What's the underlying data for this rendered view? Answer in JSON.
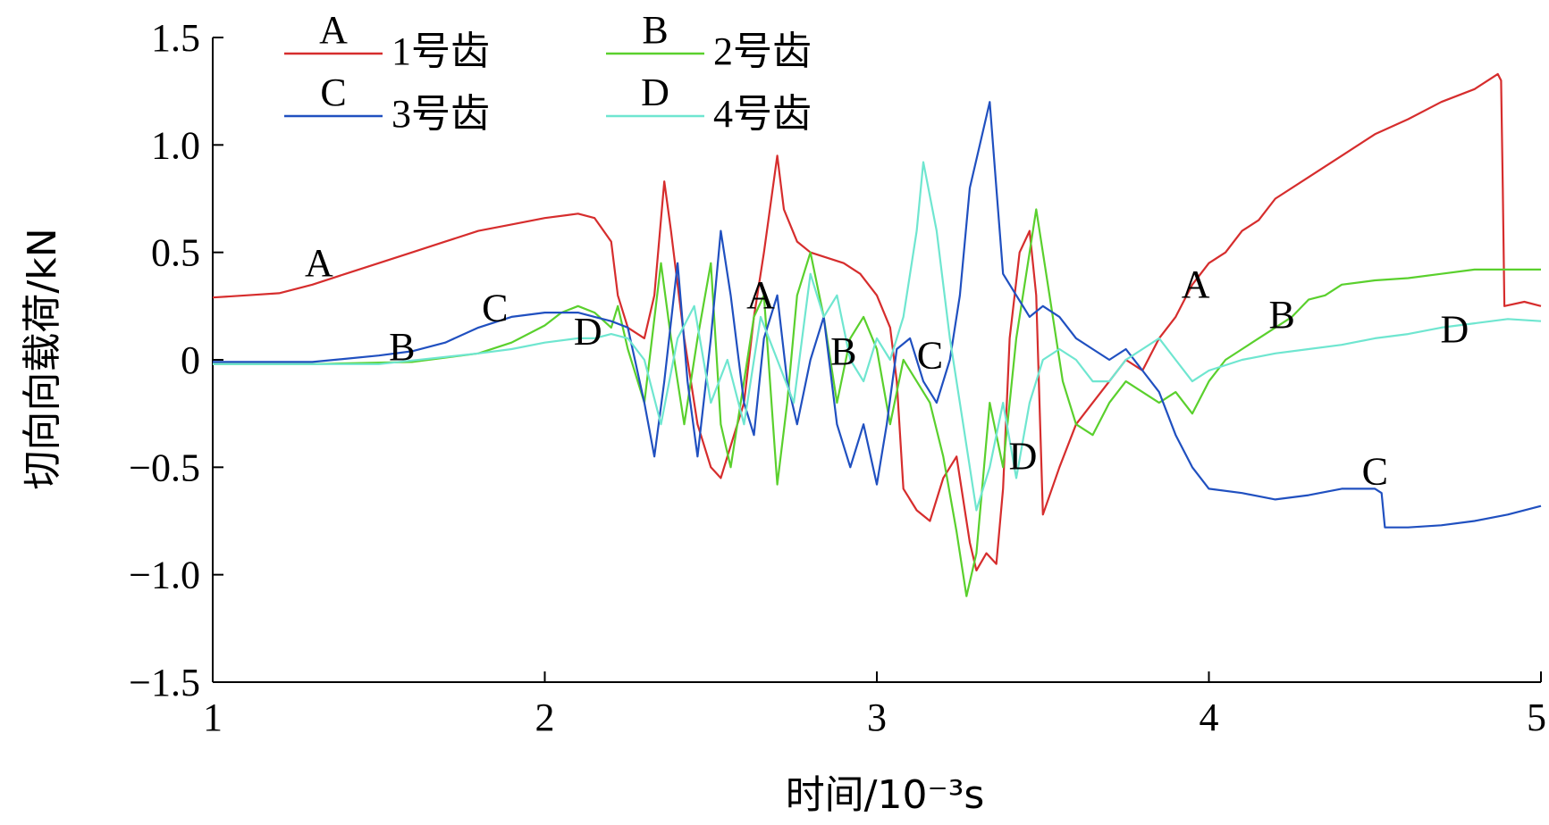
{
  "chart_data": {
    "type": "line",
    "xlabel": "时间/10⁻³s",
    "ylabel": "切向向载荷/kN",
    "xlim": [
      1,
      5
    ],
    "ylim": [
      -1.5,
      1.5
    ],
    "xticks": [
      1,
      2,
      3,
      4,
      5
    ],
    "xtick_labels": [
      "1",
      "2",
      "3",
      "4",
      "5"
    ],
    "yticks": [
      -1.5,
      -1.0,
      -0.5,
      0,
      0.5,
      1.0,
      1.5
    ],
    "ytick_labels": [
      "−1.5",
      "−1.0",
      "−0.5",
      "0",
      "0.5",
      "1.0",
      "1.5"
    ],
    "grid": false,
    "legend_position": "top-left",
    "series": [
      {
        "key": "A",
        "name": "1号齿",
        "color": "#d62d2d",
        "points": [
          [
            1.0,
            0.29
          ],
          [
            1.1,
            0.3
          ],
          [
            1.2,
            0.31
          ],
          [
            1.3,
            0.35
          ],
          [
            1.4,
            0.4
          ],
          [
            1.5,
            0.45
          ],
          [
            1.6,
            0.5
          ],
          [
            1.7,
            0.55
          ],
          [
            1.8,
            0.6
          ],
          [
            1.9,
            0.63
          ],
          [
            2.0,
            0.66
          ],
          [
            2.1,
            0.68
          ],
          [
            2.15,
            0.66
          ],
          [
            2.2,
            0.55
          ],
          [
            2.22,
            0.3
          ],
          [
            2.25,
            0.15
          ],
          [
            2.3,
            0.1
          ],
          [
            2.33,
            0.3
          ],
          [
            2.36,
            0.83
          ],
          [
            2.38,
            0.6
          ],
          [
            2.42,
            0.1
          ],
          [
            2.46,
            -0.3
          ],
          [
            2.5,
            -0.5
          ],
          [
            2.53,
            -0.55
          ],
          [
            2.56,
            -0.4
          ],
          [
            2.6,
            -0.2
          ],
          [
            2.63,
            0.2
          ],
          [
            2.66,
            0.5
          ],
          [
            2.7,
            0.95
          ],
          [
            2.72,
            0.7
          ],
          [
            2.76,
            0.55
          ],
          [
            2.8,
            0.5
          ],
          [
            2.9,
            0.45
          ],
          [
            2.95,
            0.4
          ],
          [
            3.0,
            0.3
          ],
          [
            3.04,
            0.15
          ],
          [
            3.06,
            -0.1
          ],
          [
            3.08,
            -0.6
          ],
          [
            3.12,
            -0.7
          ],
          [
            3.16,
            -0.75
          ],
          [
            3.2,
            -0.55
          ],
          [
            3.24,
            -0.45
          ],
          [
            3.28,
            -0.85
          ],
          [
            3.3,
            -0.98
          ],
          [
            3.33,
            -0.9
          ],
          [
            3.36,
            -0.95
          ],
          [
            3.38,
            -0.6
          ],
          [
            3.4,
            0.1
          ],
          [
            3.43,
            0.5
          ],
          [
            3.46,
            0.6
          ],
          [
            3.48,
            0.3
          ],
          [
            3.5,
            -0.72
          ],
          [
            3.55,
            -0.5
          ],
          [
            3.6,
            -0.3
          ],
          [
            3.65,
            -0.2
          ],
          [
            3.7,
            -0.1
          ],
          [
            3.75,
            0.0
          ],
          [
            3.8,
            -0.05
          ],
          [
            3.85,
            0.1
          ],
          [
            3.9,
            0.2
          ],
          [
            3.95,
            0.35
          ],
          [
            4.0,
            0.45
          ],
          [
            4.05,
            0.5
          ],
          [
            4.1,
            0.6
          ],
          [
            4.15,
            0.65
          ],
          [
            4.2,
            0.75
          ],
          [
            4.3,
            0.85
          ],
          [
            4.4,
            0.95
          ],
          [
            4.5,
            1.05
          ],
          [
            4.6,
            1.12
          ],
          [
            4.7,
            1.2
          ],
          [
            4.8,
            1.26
          ],
          [
            4.87,
            1.33
          ],
          [
            4.88,
            1.3
          ],
          [
            4.885,
            0.8
          ],
          [
            4.89,
            0.25
          ],
          [
            4.95,
            0.27
          ],
          [
            5.0,
            0.25
          ]
        ]
      },
      {
        "key": "B",
        "name": "2号齿",
        "color": "#5ad02d",
        "points": [
          [
            1.0,
            -0.02
          ],
          [
            1.3,
            -0.02
          ],
          [
            1.6,
            -0.01
          ],
          [
            1.8,
            0.03
          ],
          [
            1.9,
            0.08
          ],
          [
            2.0,
            0.16
          ],
          [
            2.05,
            0.22
          ],
          [
            2.1,
            0.25
          ],
          [
            2.15,
            0.22
          ],
          [
            2.2,
            0.15
          ],
          [
            2.22,
            0.25
          ],
          [
            2.25,
            0.05
          ],
          [
            2.3,
            -0.2
          ],
          [
            2.35,
            0.45
          ],
          [
            2.38,
            0.1
          ],
          [
            2.42,
            -0.3
          ],
          [
            2.46,
            0.1
          ],
          [
            2.5,
            0.45
          ],
          [
            2.53,
            -0.3
          ],
          [
            2.56,
            -0.5
          ],
          [
            2.6,
            -0.1
          ],
          [
            2.63,
            0.2
          ],
          [
            2.66,
            0.3
          ],
          [
            2.7,
            -0.58
          ],
          [
            2.73,
            -0.2
          ],
          [
            2.76,
            0.3
          ],
          [
            2.8,
            0.5
          ],
          [
            2.84,
            0.2
          ],
          [
            2.88,
            -0.2
          ],
          [
            2.92,
            0.1
          ],
          [
            2.96,
            0.2
          ],
          [
            3.0,
            0.05
          ],
          [
            3.04,
            -0.3
          ],
          [
            3.08,
            0.0
          ],
          [
            3.12,
            -0.1
          ],
          [
            3.16,
            -0.2
          ],
          [
            3.2,
            -0.45
          ],
          [
            3.24,
            -0.8
          ],
          [
            3.27,
            -1.1
          ],
          [
            3.3,
            -0.9
          ],
          [
            3.34,
            -0.2
          ],
          [
            3.38,
            -0.5
          ],
          [
            3.42,
            0.1
          ],
          [
            3.46,
            0.5
          ],
          [
            3.48,
            0.7
          ],
          [
            3.52,
            0.3
          ],
          [
            3.56,
            -0.1
          ],
          [
            3.6,
            -0.3
          ],
          [
            3.65,
            -0.35
          ],
          [
            3.7,
            -0.2
          ],
          [
            3.75,
            -0.1
          ],
          [
            3.8,
            -0.15
          ],
          [
            3.85,
            -0.2
          ],
          [
            3.9,
            -0.15
          ],
          [
            3.95,
            -0.25
          ],
          [
            4.0,
            -0.1
          ],
          [
            4.05,
            0.0
          ],
          [
            4.1,
            0.05
          ],
          [
            4.15,
            0.1
          ],
          [
            4.2,
            0.15
          ],
          [
            4.25,
            0.2
          ],
          [
            4.3,
            0.28
          ],
          [
            4.35,
            0.3
          ],
          [
            4.4,
            0.35
          ],
          [
            4.5,
            0.37
          ],
          [
            4.6,
            0.38
          ],
          [
            4.7,
            0.4
          ],
          [
            4.8,
            0.42
          ],
          [
            4.9,
            0.42
          ],
          [
            5.0,
            0.42
          ]
        ]
      },
      {
        "key": "C",
        "name": "3号齿",
        "color": "#2050c0",
        "points": [
          [
            1.0,
            -0.01
          ],
          [
            1.3,
            -0.01
          ],
          [
            1.5,
            0.02
          ],
          [
            1.6,
            0.04
          ],
          [
            1.7,
            0.08
          ],
          [
            1.8,
            0.15
          ],
          [
            1.9,
            0.2
          ],
          [
            2.0,
            0.22
          ],
          [
            2.1,
            0.22
          ],
          [
            2.15,
            0.2
          ],
          [
            2.2,
            0.18
          ],
          [
            2.25,
            0.15
          ],
          [
            2.3,
            -0.2
          ],
          [
            2.33,
            -0.45
          ],
          [
            2.36,
            -0.1
          ],
          [
            2.4,
            0.45
          ],
          [
            2.43,
            -0.1
          ],
          [
            2.46,
            -0.45
          ],
          [
            2.5,
            0.1
          ],
          [
            2.53,
            0.6
          ],
          [
            2.56,
            0.3
          ],
          [
            2.6,
            -0.2
          ],
          [
            2.63,
            -0.35
          ],
          [
            2.66,
            0.1
          ],
          [
            2.7,
            0.3
          ],
          [
            2.73,
            -0.1
          ],
          [
            2.76,
            -0.3
          ],
          [
            2.8,
            0.0
          ],
          [
            2.84,
            0.2
          ],
          [
            2.88,
            -0.3
          ],
          [
            2.92,
            -0.5
          ],
          [
            2.96,
            -0.3
          ],
          [
            3.0,
            -0.58
          ],
          [
            3.03,
            -0.3
          ],
          [
            3.06,
            0.05
          ],
          [
            3.1,
            0.1
          ],
          [
            3.14,
            -0.1
          ],
          [
            3.18,
            -0.2
          ],
          [
            3.22,
            0.0
          ],
          [
            3.25,
            0.3
          ],
          [
            3.28,
            0.8
          ],
          [
            3.31,
            1.0
          ],
          [
            3.34,
            1.2
          ],
          [
            3.36,
            0.8
          ],
          [
            3.38,
            0.4
          ],
          [
            3.42,
            0.3
          ],
          [
            3.46,
            0.2
          ],
          [
            3.5,
            0.25
          ],
          [
            3.55,
            0.2
          ],
          [
            3.6,
            0.1
          ],
          [
            3.65,
            0.05
          ],
          [
            3.7,
            0.0
          ],
          [
            3.75,
            0.05
          ],
          [
            3.8,
            -0.05
          ],
          [
            3.85,
            -0.15
          ],
          [
            3.9,
            -0.35
          ],
          [
            3.95,
            -0.5
          ],
          [
            4.0,
            -0.6
          ],
          [
            4.1,
            -0.62
          ],
          [
            4.2,
            -0.65
          ],
          [
            4.3,
            -0.63
          ],
          [
            4.4,
            -0.6
          ],
          [
            4.5,
            -0.6
          ],
          [
            4.52,
            -0.62
          ],
          [
            4.53,
            -0.78
          ],
          [
            4.6,
            -0.78
          ],
          [
            4.7,
            -0.77
          ],
          [
            4.8,
            -0.75
          ],
          [
            4.9,
            -0.72
          ],
          [
            5.0,
            -0.68
          ]
        ]
      },
      {
        "key": "D",
        "name": "4号齿",
        "color": "#6fe6d0",
        "points": [
          [
            1.0,
            -0.02
          ],
          [
            1.5,
            -0.02
          ],
          [
            1.8,
            0.03
          ],
          [
            1.9,
            0.05
          ],
          [
            2.0,
            0.08
          ],
          [
            2.1,
            0.1
          ],
          [
            2.15,
            0.1
          ],
          [
            2.2,
            0.12
          ],
          [
            2.25,
            0.1
          ],
          [
            2.3,
            0.0
          ],
          [
            2.35,
            -0.3
          ],
          [
            2.4,
            0.1
          ],
          [
            2.45,
            0.25
          ],
          [
            2.5,
            -0.2
          ],
          [
            2.55,
            0.0
          ],
          [
            2.6,
            -0.3
          ],
          [
            2.65,
            0.2
          ],
          [
            2.7,
            0.0
          ],
          [
            2.75,
            -0.2
          ],
          [
            2.8,
            0.4
          ],
          [
            2.84,
            0.2
          ],
          [
            2.88,
            0.3
          ],
          [
            2.92,
            0.0
          ],
          [
            2.96,
            -0.1
          ],
          [
            3.0,
            0.1
          ],
          [
            3.04,
            0.0
          ],
          [
            3.08,
            0.2
          ],
          [
            3.12,
            0.6
          ],
          [
            3.14,
            0.92
          ],
          [
            3.18,
            0.6
          ],
          [
            3.22,
            0.1
          ],
          [
            3.26,
            -0.3
          ],
          [
            3.3,
            -0.7
          ],
          [
            3.34,
            -0.5
          ],
          [
            3.38,
            -0.2
          ],
          [
            3.42,
            -0.55
          ],
          [
            3.46,
            -0.2
          ],
          [
            3.5,
            0.0
          ],
          [
            3.55,
            0.05
          ],
          [
            3.6,
            0.0
          ],
          [
            3.65,
            -0.1
          ],
          [
            3.7,
            -0.1
          ],
          [
            3.75,
            0.0
          ],
          [
            3.8,
            0.05
          ],
          [
            3.85,
            0.1
          ],
          [
            3.9,
            0.0
          ],
          [
            3.95,
            -0.1
          ],
          [
            4.0,
            -0.05
          ],
          [
            4.1,
            0.0
          ],
          [
            4.2,
            0.03
          ],
          [
            4.3,
            0.05
          ],
          [
            4.4,
            0.07
          ],
          [
            4.5,
            0.1
          ],
          [
            4.6,
            0.12
          ],
          [
            4.7,
            0.15
          ],
          [
            4.8,
            0.17
          ],
          [
            4.9,
            0.19
          ],
          [
            5.0,
            0.18
          ]
        ]
      }
    ],
    "annotations": [
      {
        "text": "A",
        "x": 1.32,
        "y": 0.39
      },
      {
        "text": "B",
        "x": 1.57,
        "y": 0.0
      },
      {
        "text": "C",
        "x": 1.85,
        "y": 0.18
      },
      {
        "text": "D",
        "x": 2.13,
        "y": 0.07
      },
      {
        "text": "A",
        "x": 2.65,
        "y": 0.24
      },
      {
        "text": "B",
        "x": 2.9,
        "y": -0.02
      },
      {
        "text": "C",
        "x": 3.16,
        "y": -0.04
      },
      {
        "text": "D",
        "x": 3.44,
        "y": -0.51
      },
      {
        "text": "A",
        "x": 3.96,
        "y": 0.29
      },
      {
        "text": "B",
        "x": 4.22,
        "y": 0.15
      },
      {
        "text": "C",
        "x": 4.5,
        "y": -0.58
      },
      {
        "text": "D",
        "x": 4.74,
        "y": 0.08
      }
    ]
  }
}
